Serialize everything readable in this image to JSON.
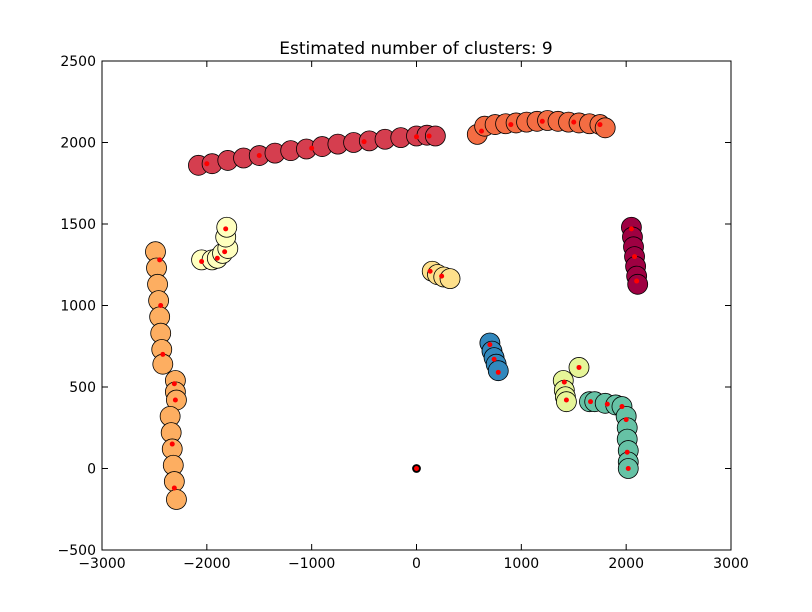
{
  "chart_data": {
    "type": "scatter",
    "title": "Estimated number of clusters: 9",
    "xlabel": "",
    "ylabel": "",
    "xlim": [
      -3000,
      3000
    ],
    "ylim": [
      -500,
      2500
    ],
    "xticks": [
      -3000,
      -2000,
      -1000,
      0,
      1000,
      2000,
      3000
    ],
    "yticks": [
      -500,
      0,
      500,
      1000,
      1500,
      2000,
      2500
    ],
    "xtick_labels": [
      "−3000",
      "−2000",
      "−1000",
      "0",
      "1000",
      "2000",
      "3000"
    ],
    "ytick_labels": [
      "−500",
      "0",
      "500",
      "1000",
      "1500",
      "2000",
      "2500"
    ],
    "grid": false,
    "legend": "none",
    "marker_edge_color": "#000000",
    "center_marker_color": "#ff0000",
    "clusters": [
      {
        "color": "#d53e4f",
        "points": [
          [
            -2080,
            1860
          ],
          [
            -1950,
            1870
          ],
          [
            -1800,
            1890
          ],
          [
            -1650,
            1905
          ],
          [
            -1500,
            1920
          ],
          [
            -1350,
            1935
          ],
          [
            -1200,
            1950
          ],
          [
            -1050,
            1960
          ],
          [
            -900,
            1975
          ],
          [
            -750,
            1990
          ],
          [
            -600,
            2000
          ],
          [
            -450,
            2010
          ],
          [
            -300,
            2020
          ],
          [
            -150,
            2030
          ],
          [
            0,
            2040
          ],
          [
            100,
            2045
          ],
          [
            180,
            2040
          ]
        ]
      },
      {
        "color": "#f46d43",
        "points": [
          [
            580,
            2050
          ],
          [
            650,
            2100
          ],
          [
            750,
            2110
          ],
          [
            850,
            2115
          ],
          [
            950,
            2120
          ],
          [
            1050,
            2125
          ],
          [
            1150,
            2130
          ],
          [
            1250,
            2135
          ],
          [
            1350,
            2130
          ],
          [
            1450,
            2125
          ],
          [
            1550,
            2120
          ],
          [
            1650,
            2115
          ],
          [
            1750,
            2110
          ],
          [
            1800,
            2090
          ]
        ]
      },
      {
        "color": "#9e0142",
        "points": [
          [
            2050,
            1480
          ],
          [
            2060,
            1420
          ],
          [
            2070,
            1360
          ],
          [
            2080,
            1300
          ],
          [
            2090,
            1240
          ],
          [
            2100,
            1180
          ],
          [
            2110,
            1130
          ]
        ]
      },
      {
        "color": "#3288bd",
        "points": [
          [
            700,
            770
          ],
          [
            720,
            720
          ],
          [
            740,
            680
          ],
          [
            760,
            640
          ],
          [
            780,
            600
          ]
        ]
      },
      {
        "color": "#fee08b",
        "points": [
          [
            150,
            1210
          ],
          [
            200,
            1190
          ],
          [
            260,
            1175
          ],
          [
            320,
            1165
          ]
        ]
      },
      {
        "color": "#ffffbf",
        "points": [
          [
            -2050,
            1280
          ],
          [
            -1950,
            1280
          ],
          [
            -1900,
            1290
          ],
          [
            -1850,
            1320
          ],
          [
            -1800,
            1350
          ],
          [
            -1820,
            1420
          ],
          [
            -1810,
            1480
          ]
        ]
      },
      {
        "color": "#fdae61",
        "points": [
          [
            -2490,
            1330
          ],
          [
            -2480,
            1230
          ],
          [
            -2470,
            1130
          ],
          [
            -2460,
            1030
          ],
          [
            -2450,
            930
          ],
          [
            -2440,
            830
          ],
          [
            -2430,
            730
          ],
          [
            -2420,
            640
          ],
          [
            -2300,
            540
          ],
          [
            -2300,
            470
          ],
          [
            -2290,
            420
          ],
          [
            -2350,
            320
          ],
          [
            -2340,
            220
          ],
          [
            -2330,
            120
          ],
          [
            -2320,
            20
          ],
          [
            -2310,
            -80
          ],
          [
            -2290,
            -190
          ]
        ]
      },
      {
        "color": "#e6f598",
        "points": [
          [
            1400,
            540
          ],
          [
            1410,
            480
          ],
          [
            1420,
            440
          ],
          [
            1430,
            410
          ],
          [
            1550,
            620
          ]
        ]
      },
      {
        "color": "#66c2a5",
        "points": [
          [
            1650,
            410
          ],
          [
            1700,
            410
          ],
          [
            1800,
            400
          ],
          [
            1900,
            390
          ],
          [
            1960,
            380
          ],
          [
            2000,
            320
          ],
          [
            2010,
            250
          ],
          [
            2010,
            180
          ],
          [
            2020,
            110
          ],
          [
            2020,
            40
          ],
          [
            2020,
            0
          ]
        ]
      },
      {
        "color": "#000000",
        "points": [
          [
            0,
            0
          ]
        ],
        "size": "small"
      }
    ],
    "centers": [
      [
        -2000,
        1870
      ],
      [
        -1500,
        1920
      ],
      [
        -1000,
        1965
      ],
      [
        -500,
        2005
      ],
      [
        0,
        2035
      ],
      [
        120,
        2040
      ],
      [
        620,
        2070
      ],
      [
        900,
        2110
      ],
      [
        1200,
        2130
      ],
      [
        1500,
        2125
      ],
      [
        1750,
        2110
      ],
      [
        2050,
        1470
      ],
      [
        2080,
        1300
      ],
      [
        2100,
        1150
      ],
      [
        700,
        760
      ],
      [
        740,
        670
      ],
      [
        780,
        590
      ],
      [
        130,
        1210
      ],
      [
        240,
        1180
      ],
      [
        -2050,
        1270
      ],
      [
        -1900,
        1290
      ],
      [
        -1830,
        1330
      ],
      [
        -1820,
        1470
      ],
      [
        -2450,
        1280
      ],
      [
        -2440,
        1000
      ],
      [
        -2420,
        700
      ],
      [
        -2310,
        520
      ],
      [
        -2300,
        420
      ],
      [
        -2330,
        150
      ],
      [
        -2310,
        -120
      ],
      [
        1410,
        530
      ],
      [
        1430,
        420
      ],
      [
        1550,
        620
      ],
      [
        1660,
        410
      ],
      [
        1820,
        395
      ],
      [
        1960,
        380
      ],
      [
        2000,
        300
      ],
      [
        2010,
        100
      ],
      [
        2020,
        0
      ],
      [
        0,
        0
      ]
    ]
  }
}
